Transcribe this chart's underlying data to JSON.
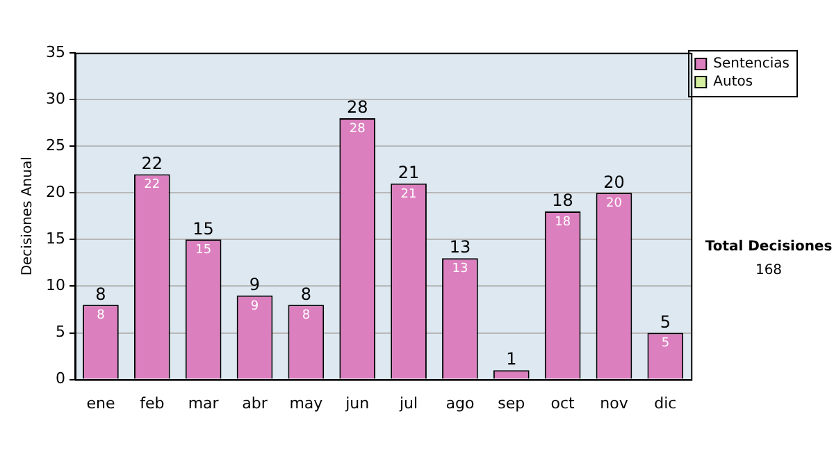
{
  "chart_data": {
    "type": "bar",
    "ylabel": "Decisiones Anual",
    "categories": [
      "ene",
      "feb",
      "mar",
      "abr",
      "may",
      "jun",
      "jul",
      "ago",
      "sep",
      "oct",
      "nov",
      "dic"
    ],
    "series": [
      {
        "name": "Sentencias",
        "color": "#dc7fbf",
        "values": [
          8,
          22,
          15,
          9,
          8,
          28,
          21,
          13,
          1,
          18,
          20,
          5
        ],
        "value_labels": [
          "8",
          "22",
          "15",
          "9",
          "8",
          "28",
          "21",
          "13",
          null,
          "18",
          "20",
          "5"
        ]
      },
      {
        "name": "Autos",
        "color": "#d4eea0",
        "values": [
          0,
          0,
          0,
          0,
          0,
          0,
          0,
          0,
          0,
          0,
          0,
          0
        ]
      }
    ],
    "stacked": true,
    "totals": [
      "8",
      "22",
      "15",
      "9",
      "8",
      "28",
      "21",
      "13",
      "1",
      "18",
      "20",
      "5"
    ],
    "ylim": [
      0,
      35
    ],
    "yticks": [
      0,
      5,
      10,
      15,
      20,
      25,
      30,
      35
    ],
    "grid": "y",
    "legend": "right",
    "annotations": [
      "Total Decisiones",
      "168"
    ]
  }
}
